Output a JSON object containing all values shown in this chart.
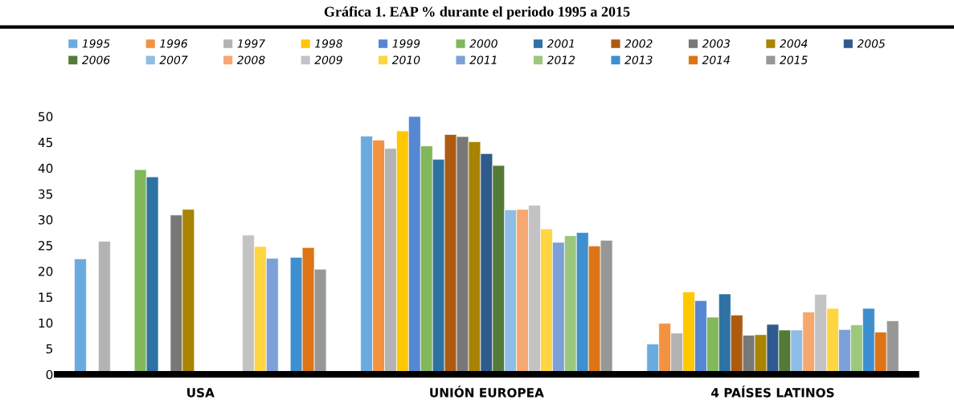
{
  "chart_data": {
    "type": "bar",
    "title": "Gráfica 1. EAP % durante el periodo 1995 a 2015",
    "categories": [
      "USA",
      "UNIÓN EUROPEA",
      "4 PAÍSES LATINOS"
    ],
    "series": [
      {
        "name": "1995",
        "color": "#6aabdf",
        "values": [
          22.4,
          46.2,
          5.9
        ]
      },
      {
        "name": "1996",
        "color": "#f39240",
        "values": [
          null,
          45.4,
          9.9
        ]
      },
      {
        "name": "1997",
        "color": "#b3b3b3",
        "values": [
          25.8,
          43.8,
          8.0
        ]
      },
      {
        "name": "1998",
        "color": "#ffc800",
        "values": [
          null,
          47.2,
          16.0
        ]
      },
      {
        "name": "1999",
        "color": "#5687d2",
        "values": [
          null,
          50.0,
          14.3
        ]
      },
      {
        "name": "2000",
        "color": "#82b75a",
        "values": [
          39.7,
          44.3,
          11.1
        ]
      },
      {
        "name": "2001",
        "color": "#2e72a3",
        "values": [
          38.3,
          41.7,
          15.6
        ]
      },
      {
        "name": "2002",
        "color": "#ad5a0f",
        "values": [
          null,
          46.5,
          11.5
        ]
      },
      {
        "name": "2003",
        "color": "#787878",
        "values": [
          30.9,
          46.1,
          7.6
        ]
      },
      {
        "name": "2004",
        "color": "#a88400",
        "values": [
          32.0,
          45.1,
          7.7
        ]
      },
      {
        "name": "2005",
        "color": "#2f5a8e",
        "values": [
          null,
          42.8,
          9.7
        ]
      },
      {
        "name": "2006",
        "color": "#547a38",
        "values": [
          null,
          40.5,
          8.6
        ]
      },
      {
        "name": "2007",
        "color": "#8fbde6",
        "values": [
          null,
          31.9,
          8.6
        ]
      },
      {
        "name": "2008",
        "color": "#f5a86f",
        "values": [
          null,
          32.0,
          12.1
        ]
      },
      {
        "name": "2009",
        "color": "#c3c3c3",
        "values": [
          27.0,
          32.8,
          15.5
        ]
      },
      {
        "name": "2010",
        "color": "#ffd541",
        "values": [
          24.8,
          28.2,
          12.8
        ]
      },
      {
        "name": "2011",
        "color": "#7da0d8",
        "values": [
          22.5,
          25.6,
          8.7
        ]
      },
      {
        "name": "2012",
        "color": "#9bc87c",
        "values": [
          null,
          26.9,
          9.6
        ]
      },
      {
        "name": "2013",
        "color": "#3e8fcf",
        "values": [
          22.7,
          27.5,
          12.8
        ]
      },
      {
        "name": "2014",
        "color": "#de7415",
        "values": [
          24.6,
          24.9,
          8.2
        ]
      },
      {
        "name": "2015",
        "color": "#979797",
        "values": [
          20.4,
          26.0,
          10.4
        ]
      }
    ],
    "ylim": [
      0,
      50
    ],
    "yticks": [
      0,
      5,
      10,
      15,
      20,
      25,
      30,
      35,
      40,
      45,
      50
    ],
    "grid": false,
    "legend": "top"
  }
}
